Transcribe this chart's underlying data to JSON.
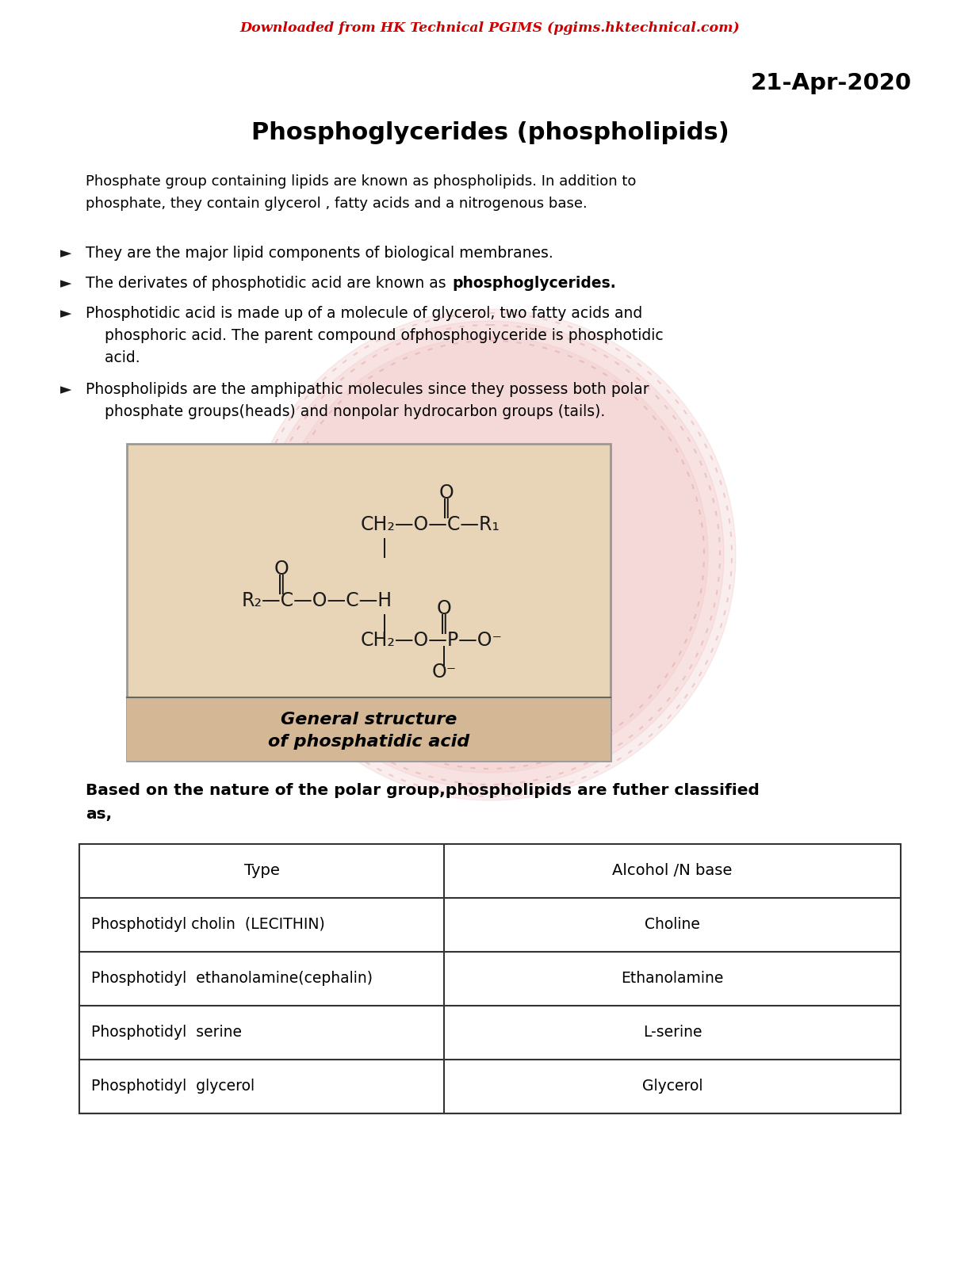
{
  "bg_color": "#ffffff",
  "header_text": "Downloaded from HK Technical PGIMS (pgims.hktechnical.com)",
  "header_color": "#cc0000",
  "date_text": "21-Apr-2020",
  "title_text": "Phosphoglycerides (phospholipids)",
  "intro_line1": "Phosphate group containing lipids are known as phospholipids. In addition to",
  "intro_line2": "phosphate, they contain glycerol , fatty acids and a nitrogenous base.",
  "bullet1": "They are the major lipid components of biological membranes.",
  "bullet2_normal": "The derivates of phosphotidic acid are known as ",
  "bullet2_bold": "phosphoglycerides.",
  "bullet3_line1": "Phosphotidic acid is made up of a molecule of glycerol, two fatty acids and",
  "bullet3_line2": "phosphoric acid. The parent compound ofphosphogiyceride is phosphotidic",
  "bullet3_line3": "acid.",
  "bullet4_line1": "Phospholipids are the amphipathic molecules since they possess both polar",
  "bullet4_line2": "phosphate groups(heads) and nonpolar hydrocarbon groups (tails).",
  "class_line1": "Based on the nature of the polar group,phospholipids are futher classified",
  "class_line2": "as,",
  "table_header_left": "Type",
  "table_header_right": "Alcohol /N base",
  "table_rows": [
    [
      "Phosphotidyl cholin  (LECITHIN)",
      "Choline"
    ],
    [
      "Phosphotidyl  ethanolamine(cephalin)",
      "Ethanolamine"
    ],
    [
      "Phosphotidyl  serine",
      "L-serine"
    ],
    [
      "Phosphotidyl  glycerol",
      "Glycerol"
    ]
  ],
  "image_caption_line1": "General structure",
  "image_caption_line2": "of phosphatidic acid",
  "watermark_color": "#e8a0a0",
  "img_bg_color": "#e8d5b8"
}
